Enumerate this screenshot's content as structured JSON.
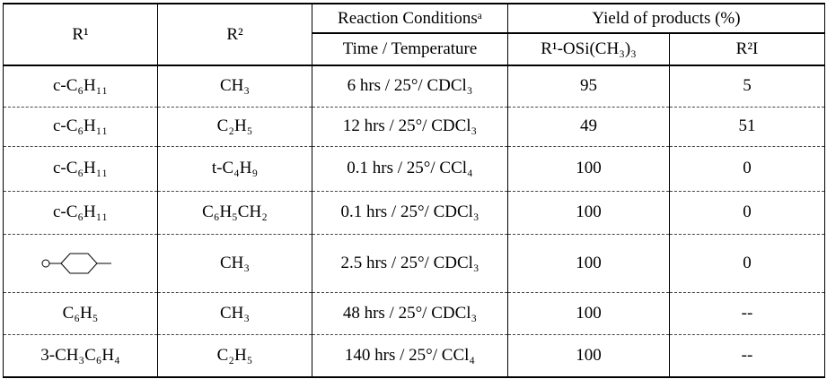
{
  "header": {
    "r1": "R¹",
    "r2": "R²",
    "conditions": "Reaction Conditionsᵃ",
    "time_temperature": "Time / Temperature",
    "yield": "Yield of products (%)",
    "yield_silyl": "R¹-OSi(CH₃)₃",
    "yield_iodide": "R²I"
  },
  "table": {
    "rows": [
      [
        "c-C₆H₁₁",
        "CH₃",
        "6 hrs / 25°/ CDCl₃",
        "95",
        "5"
      ],
      [
        "c-C₆H₁₁",
        "C₂H₅",
        "12 hrs / 25°/ CDCl₃",
        "49",
        "51"
      ],
      [
        "c-C₆H₁₁",
        "t-C₄H₉",
        "0.1 hrs / 25°/ CCl₄",
        "100",
        "0"
      ],
      [
        "c-C₆H₁₁",
        "C₆H₅CH₂",
        "0.1 hrs / 25°/ CDCl₃",
        "100",
        "0"
      ],
      [
        null,
        "CH₃",
        "2.5 hrs / 25°/ CDCl₃",
        "100",
        "0"
      ],
      [
        "C₆H₅",
        "CH₃",
        "48 hrs / 25°/ CDCl₃",
        "100",
        "--"
      ],
      [
        "3-CH₃C₆H₄",
        "C₂H₅",
        "140 hrs / 25°/ CCl₄",
        "100",
        "--"
      ]
    ]
  }
}
